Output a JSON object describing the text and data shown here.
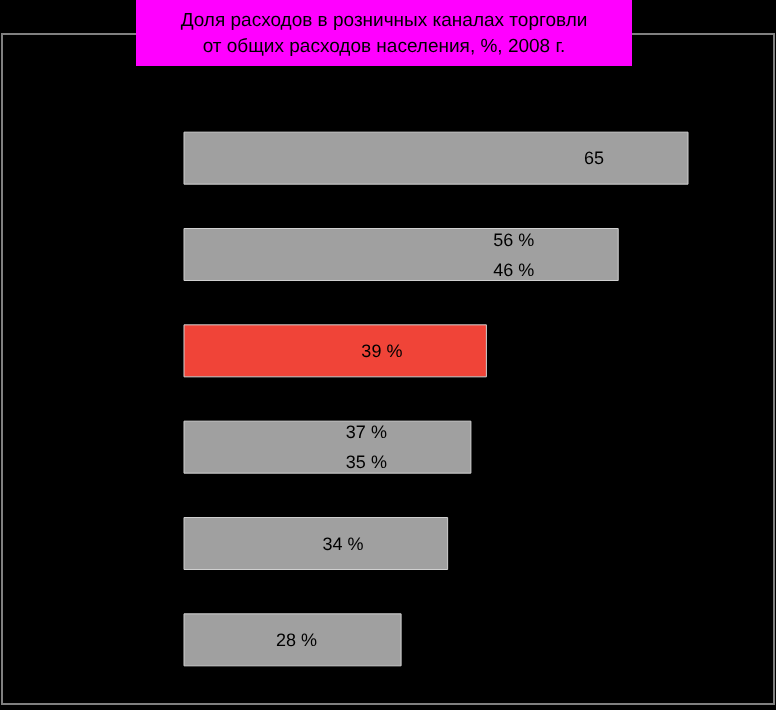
{
  "chart_data": {
    "type": "bar",
    "orientation": "horizontal",
    "title": "Доля расходов в розничных каналах торговли\nот общих расходов населения, %, 2008 г.",
    "categories": [
      null,
      null,
      null,
      null,
      null,
      null
    ],
    "values": [
      65,
      56,
      39,
      37,
      34,
      28
    ],
    "colors": [
      "#a0a0a0",
      "#a0a0a0",
      "#f04438",
      "#a0a0a0",
      "#a0a0a0",
      "#a0a0a0"
    ],
    "value_labels": [
      "65",
      "56 %\n46 %",
      "39 %",
      "37 %\n35 %",
      "34 %",
      "28 %"
    ],
    "xlim": [
      0,
      65
    ]
  }
}
